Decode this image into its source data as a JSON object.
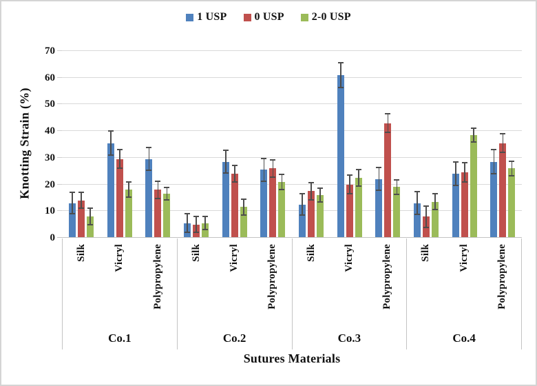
{
  "legend": {
    "items": [
      {
        "label": "1 USP",
        "color": "#4F81BD"
      },
      {
        "label": "0 USP",
        "color": "#C0504D"
      },
      {
        "label": "2-0 USP",
        "color": "#9BBB59"
      }
    ]
  },
  "y_axis": {
    "title": "Knotting Strain (%)",
    "ticks": [
      0,
      10,
      20,
      30,
      40,
      50,
      60,
      70
    ]
  },
  "x_axis": {
    "title": "Sutures Materials"
  },
  "colors": {
    "gridline": "#d9d9d9",
    "axis_line": "#c3c3c3",
    "error_bar": "#4d4d4d"
  },
  "chart_data": {
    "type": "bar",
    "title": "",
    "xlabel": "Sutures Materials",
    "ylabel": "Knotting Strain (%)",
    "ylim": [
      0,
      70
    ],
    "grid": true,
    "legend_position": "top-center",
    "group_labels": [
      "Co.1",
      "Co.2",
      "Co.3",
      "Co.4"
    ],
    "categories": [
      "Silk",
      "Vicryl",
      "Polypropylene"
    ],
    "series": [
      {
        "name": "1 USP",
        "color": "#4F81BD",
        "values": [
          [
            13,
            35.5,
            29.5
          ],
          [
            5.5,
            28.5,
            25.5
          ],
          [
            12.5,
            61,
            22
          ],
          [
            13,
            24,
            28.5
          ]
        ],
        "errors": [
          [
            4,
            4.5,
            4.3
          ],
          [
            3.5,
            4.3,
            4.2
          ],
          [
            4,
            4.6,
            4.3
          ],
          [
            4.2,
            4.4,
            4.6
          ]
        ]
      },
      {
        "name": "0 USP",
        "color": "#C0504D",
        "values": [
          [
            14,
            29.5,
            18
          ],
          [
            5,
            24,
            26
          ],
          [
            17.5,
            20,
            43
          ],
          [
            8,
            24.5,
            35.5
          ]
        ],
        "errors": [
          [
            3,
            3.5,
            3.3
          ],
          [
            3,
            3.2,
            3.3
          ],
          [
            3.2,
            3.5,
            3.5
          ],
          [
            4,
            3.6,
            3.4
          ]
        ]
      },
      {
        "name": "2-0 USP",
        "color": "#9BBB59",
        "values": [
          [
            8,
            18,
            16.5
          ],
          [
            5.5,
            11.5,
            21
          ],
          [
            16,
            22.5,
            19
          ],
          [
            13.5,
            38.5,
            26
          ]
        ],
        "errors": [
          [
            3,
            2.8,
            2.3
          ],
          [
            2.5,
            3,
            2.8
          ],
          [
            2.6,
            3,
            2.8
          ],
          [
            3,
            2.7,
            2.7
          ]
        ]
      }
    ]
  }
}
